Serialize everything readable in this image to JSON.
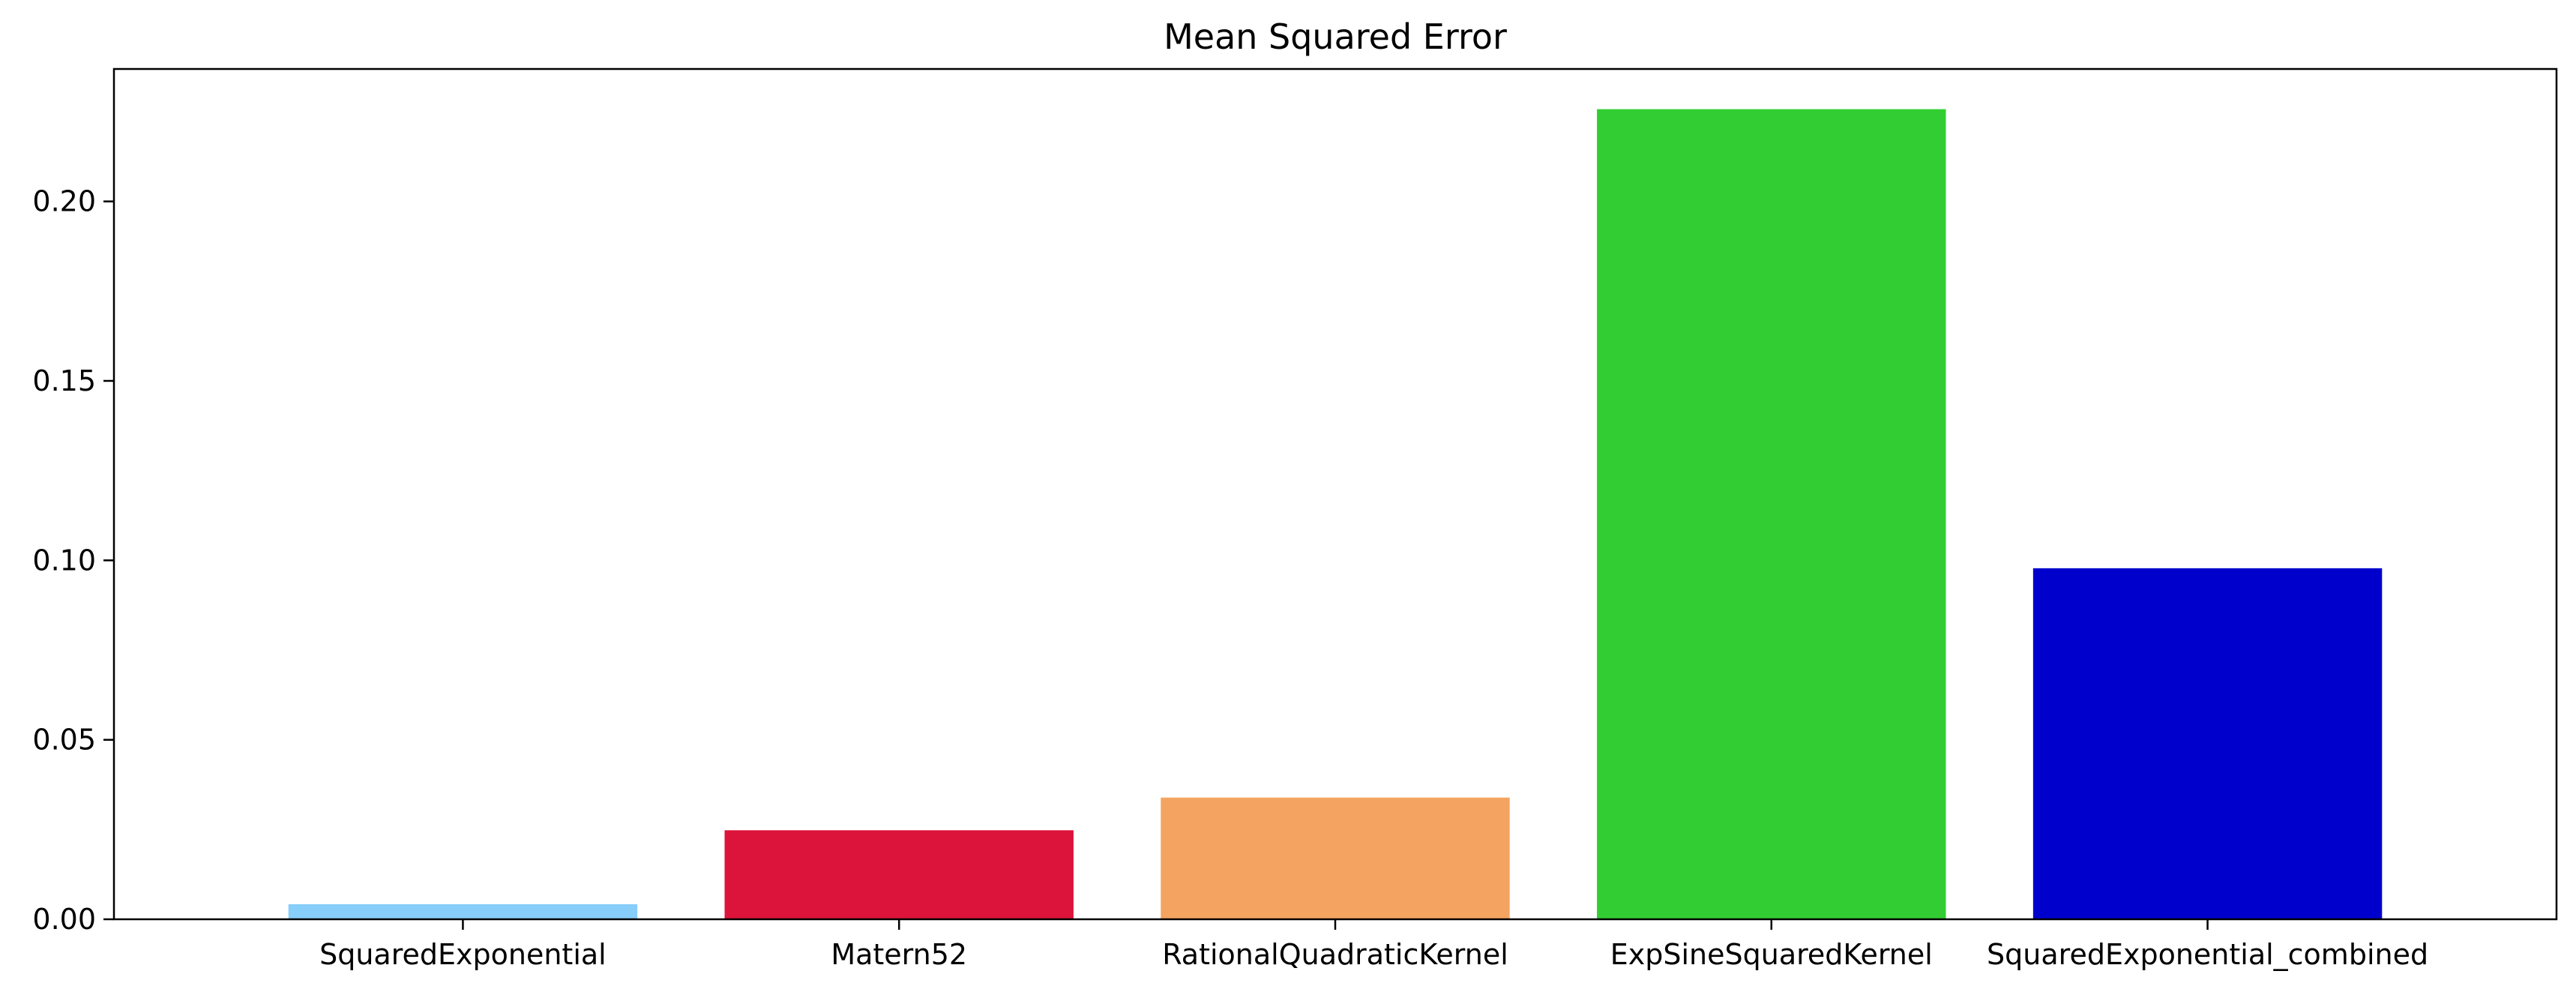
{
  "chart_data": {
    "type": "bar",
    "title": "Mean Squared Error",
    "xlabel": "",
    "ylabel": "",
    "categories": [
      "SquaredExponential",
      "Matern52",
      "RationalQuadraticKernel",
      "ExpSineSquaredKernel",
      "SquaredExponential_combined"
    ],
    "values": [
      0.0042,
      0.0248,
      0.0339,
      0.2257,
      0.0978
    ],
    "colors": [
      "#87CEFA",
      "#DC143C",
      "#F4A460",
      "#32CD32",
      "#0000CD"
    ],
    "ylim": [
      0,
      0.2369
    ],
    "yticks": [
      0.0,
      0.05,
      0.1,
      0.15,
      0.2
    ],
    "ytick_labels": [
      "0.00",
      "0.05",
      "0.10",
      "0.15",
      "0.20"
    ],
    "grid": false,
    "legend": "none"
  }
}
